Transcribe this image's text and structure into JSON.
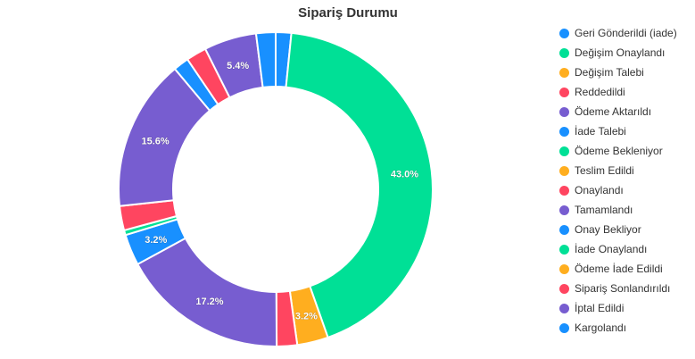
{
  "chart_data": {
    "type": "pie",
    "title": "Sipariş Durumu",
    "donut": true,
    "legend_position": "right",
    "slices": [
      {
        "label": "Geri Gönderildi (iade)",
        "value": 1.6,
        "color": "#1890ff",
        "data_label": ""
      },
      {
        "label": "Değişim Onaylandı",
        "value": 43.0,
        "color": "#00e096",
        "data_label": "43.0%"
      },
      {
        "label": "Değişim Talebi",
        "value": 3.2,
        "color": "#ffae1f",
        "data_label": "3.2%"
      },
      {
        "label": "Reddedildi",
        "value": 2.1,
        "color": "#ff4560",
        "data_label": ""
      },
      {
        "label": "Ödeme Aktarıldı",
        "value": 17.2,
        "color": "#775dd0",
        "data_label": "17.2%"
      },
      {
        "label": "İade Talebi",
        "value": 3.2,
        "color": "#1890ff",
        "data_label": "3.2%"
      },
      {
        "label": "Ödeme Bekleniyor",
        "value": 0.5,
        "color": "#00e096",
        "data_label": ""
      },
      {
        "label": "Teslim Edildi",
        "value": 0.0,
        "color": "#ffae1f",
        "data_label": ""
      },
      {
        "label": "Onaylandı",
        "value": 2.5,
        "color": "#ff4560",
        "data_label": ""
      },
      {
        "label": "Tamamlandı",
        "value": 15.6,
        "color": "#775dd0",
        "data_label": "15.6%"
      },
      {
        "label": "Onay Bekliyor",
        "value": 1.6,
        "color": "#1890ff",
        "data_label": ""
      },
      {
        "label": "İade Onaylandı",
        "value": 0.0,
        "color": "#00e096",
        "data_label": ""
      },
      {
        "label": "Ödeme İade Edildi",
        "value": 0.0,
        "color": "#ffae1f",
        "data_label": ""
      },
      {
        "label": "Sipariş Sonlandırıldı",
        "value": 2.1,
        "color": "#ff4560",
        "data_label": ""
      },
      {
        "label": "İptal Edildi",
        "value": 5.4,
        "color": "#775dd0",
        "data_label": "5.4%"
      },
      {
        "label": "Kargolandı",
        "value": 2.0,
        "color": "#1890ff",
        "data_label": ""
      }
    ]
  }
}
